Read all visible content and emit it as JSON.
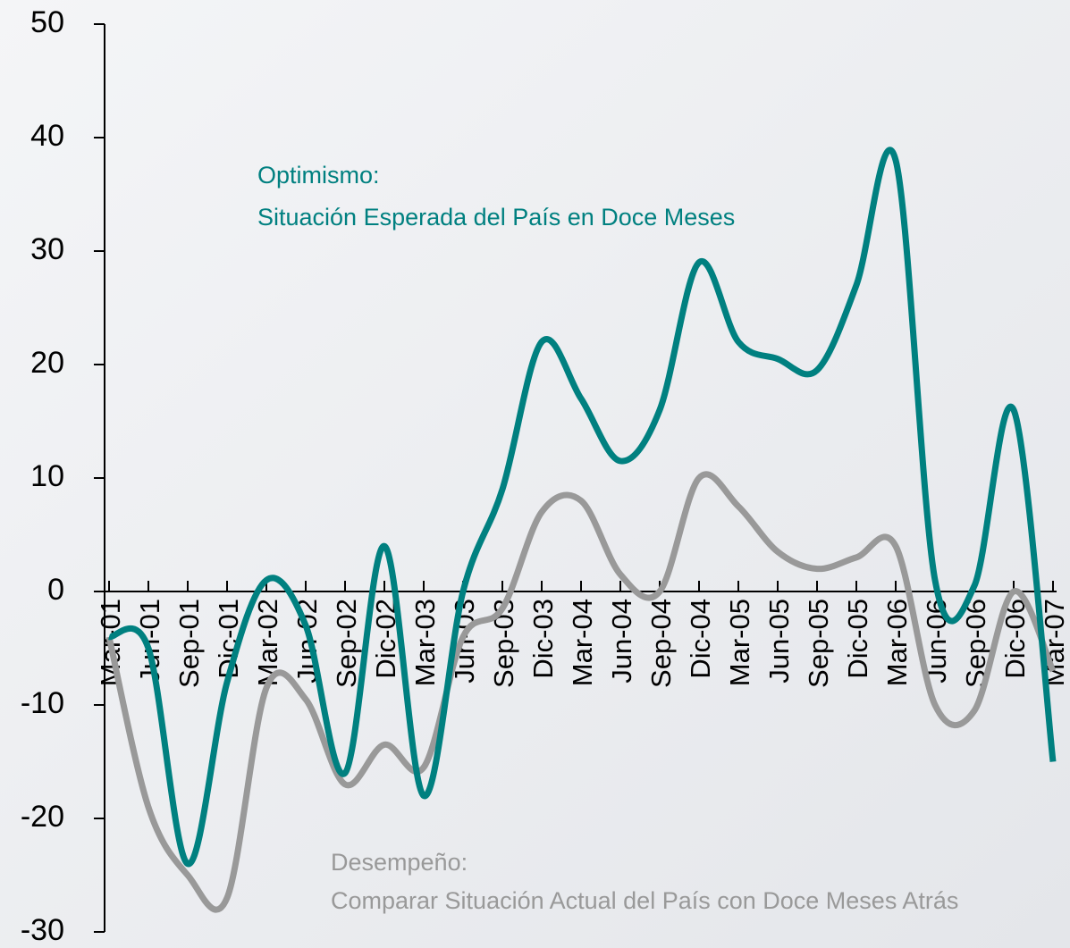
{
  "chart_data": {
    "type": "line",
    "categories": [
      "Mar-01",
      "Jun-01",
      "Sep-01",
      "Dic-01",
      "Mar-02",
      "Jun-02",
      "Sep-02",
      "Dic-02",
      "Mar-03",
      "Jun-03",
      "Sep-03",
      "Dic-03",
      "Mar-04",
      "Jun-04",
      "Sep-04",
      "Dic-04",
      "Mar-05",
      "Jun-05",
      "Sep-05",
      "Dic-05",
      "Mar-06",
      "Jun-06",
      "Sep-06",
      "Dic-06",
      "Mar-07"
    ],
    "series": [
      {
        "name": "Optimismo:",
        "description": "Situación Esperada del País en Doce Meses",
        "color": "#008080",
        "values": [
          -4,
          -5,
          -24,
          -8,
          1,
          -3,
          -16,
          4,
          -18,
          0,
          9,
          22,
          17,
          11.5,
          16,
          29,
          22,
          20.5,
          19.5,
          27,
          38,
          1,
          0.5,
          16,
          -15
        ]
      },
      {
        "name": "Desempeño:",
        "description": "Comparar Situación Actual del País con Doce Meses Atrás",
        "color": "#999999",
        "values": [
          -4,
          -19,
          -25,
          -27,
          -8.5,
          -9.5,
          -17,
          -13.5,
          -15.5,
          -4,
          -1.5,
          7,
          8,
          1.5,
          0,
          10,
          7.5,
          3.5,
          2,
          3,
          4,
          -10,
          -10.5,
          0,
          -7
        ]
      }
    ],
    "ylim": [
      -30,
      50
    ],
    "yticks": [
      -30,
      -20,
      -10,
      0,
      10,
      20,
      30,
      40,
      50
    ]
  }
}
